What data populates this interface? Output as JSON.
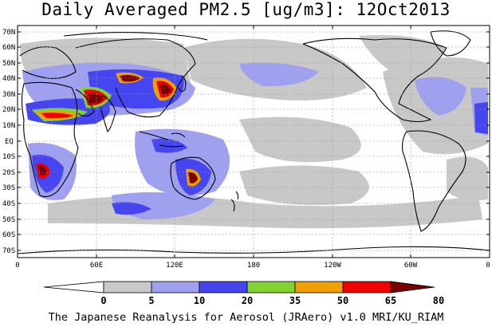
{
  "title": "Daily Averaged PM2.5 [ug/m3]: 12Oct2013",
  "footer": "The Japanese Reanalysis for Aerosol (JRAero) v1.0 MRI/KU_RIAM",
  "map": {
    "lat_labels": [
      "70N",
      "60N",
      "50N",
      "40N",
      "30N",
      "20N",
      "10N",
      "EQ",
      "10S",
      "20S",
      "30S",
      "40S",
      "50S",
      "60S",
      "70S"
    ],
    "lon_labels": [
      "0",
      "60E",
      "120E",
      "180",
      "120W",
      "60W",
      "0"
    ]
  },
  "colorbar": {
    "ticks": [
      "0",
      "5",
      "10",
      "20",
      "35",
      "50",
      "65",
      "80"
    ],
    "colors": [
      "#ffffff",
      "#c8c8c8",
      "#a0a0f0",
      "#4646f0",
      "#82d232",
      "#f0a000",
      "#f00000",
      "#780000"
    ]
  }
}
